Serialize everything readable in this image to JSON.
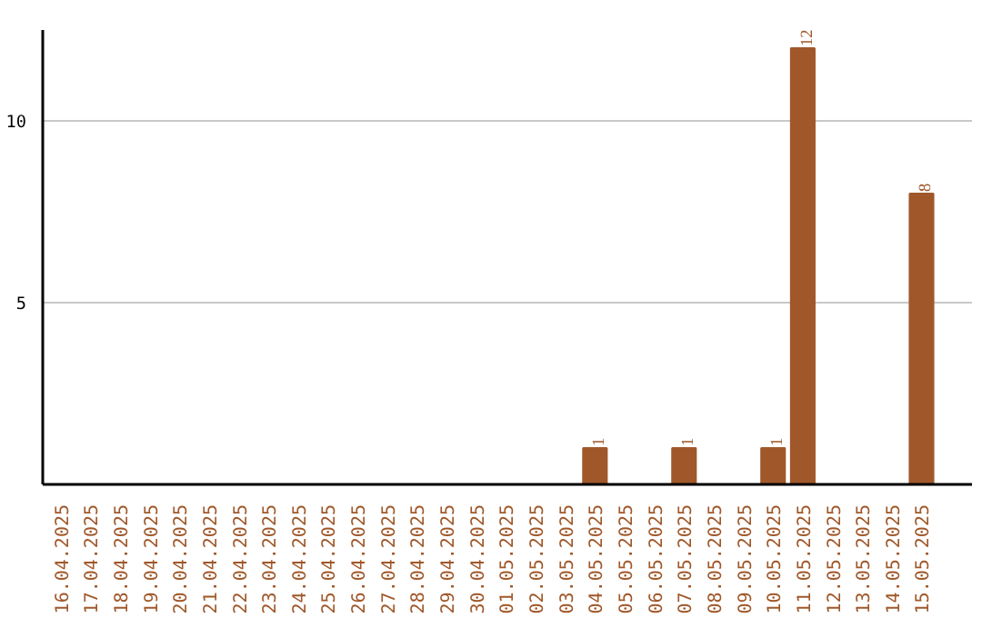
{
  "chart_data": {
    "type": "bar",
    "categories": [
      "16.04.2025",
      "17.04.2025",
      "18.04.2025",
      "19.04.2025",
      "20.04.2025",
      "21.04.2025",
      "22.04.2025",
      "23.04.2025",
      "24.04.2025",
      "25.04.2025",
      "26.04.2025",
      "27.04.2025",
      "28.04.2025",
      "29.04.2025",
      "30.04.2025",
      "01.05.2025",
      "02.05.2025",
      "03.05.2025",
      "04.05.2025",
      "05.05.2025",
      "06.05.2025",
      "07.05.2025",
      "08.05.2025",
      "09.05.2025",
      "10.05.2025",
      "11.05.2025",
      "12.05.2025",
      "13.05.2025",
      "14.05.2025",
      "15.05.2025"
    ],
    "values": [
      0,
      0,
      0,
      0,
      0,
      0,
      0,
      0,
      0,
      0,
      0,
      0,
      0,
      0,
      0,
      0,
      0,
      0,
      1,
      0,
      0,
      1,
      0,
      0,
      1,
      12,
      0,
      0,
      0,
      8
    ],
    "value_labels": [
      null,
      null,
      null,
      null,
      null,
      null,
      null,
      null,
      null,
      null,
      null,
      null,
      null,
      null,
      null,
      null,
      null,
      null,
      "1",
      null,
      null,
      "1",
      null,
      null,
      "1",
      "12",
      null,
      null,
      null,
      "8"
    ],
    "color": "#a0582a",
    "ylim": [
      0,
      12.5
    ],
    "yticks": [
      5,
      10
    ],
    "grid": "y"
  }
}
